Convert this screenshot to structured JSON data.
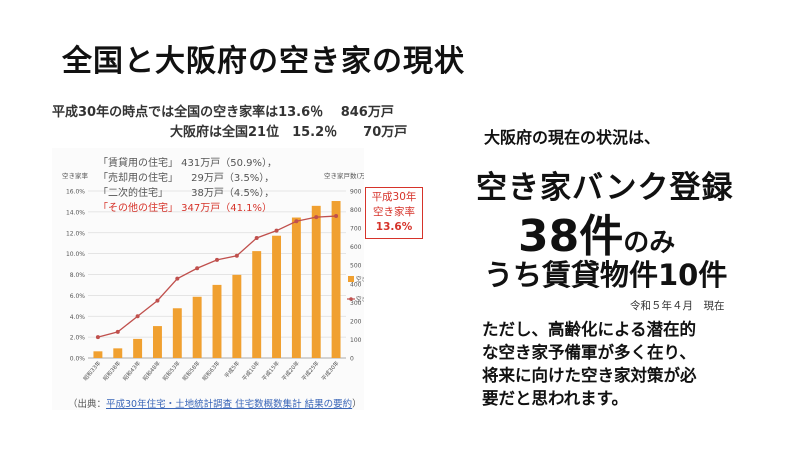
{
  "title": "全国と大阪府の空き家の現状",
  "summary": {
    "line1": "平成30年の時点では全国の空き家率は13.6％　 846万戸",
    "line2": "大阪府は全国21位　15.2％　　70万戸"
  },
  "breakdown": [
    {
      "text": "「賃貸用の住宅」 431万戸（50.9%），",
      "highlight": false
    },
    {
      "text": "「売却用の住宅」 　29万戸（3.5%），",
      "highlight": false
    },
    {
      "text": "「二次的住宅」 　　38万戸（4.5%），",
      "highlight": false
    },
    {
      "text": "「その他の住宅」 347万戸（41.1%）",
      "highlight": true
    }
  ],
  "rate_box": {
    "line1": "平成30年",
    "line2": "空き家率",
    "line3": "13.6%"
  },
  "source": {
    "prefix": "（出典：",
    "link": "平成30年住宅・土地統計調査 住宅数概数集計 結果の要約",
    "suffix": "）"
  },
  "right": {
    "heading": "大阪府の現在の状況は、",
    "line1": "空き家バンク登録",
    "line2_num": "38件",
    "line2_suffix": "のみ",
    "line3": "うち賃貸物件10件",
    "date": "令和５年４月　現在",
    "note_lines": [
      "ただし、高齢化による潜在的",
      "な空き家予備軍が多く在り、",
      "将来に向けた空き家対策が必",
      "要だと思われます。"
    ]
  },
  "colors": {
    "bar": "#f0a030",
    "line": "#c0504d",
    "accent": "#d6332a"
  },
  "chart_data": {
    "type": "bar",
    "categories": [
      "昭和33年",
      "昭和38年",
      "昭和43年",
      "昭和48年",
      "昭和53年",
      "昭和58年",
      "昭和63年",
      "平成5年",
      "平成10年",
      "平成15年",
      "平成20年",
      "平成25年",
      "平成30年"
    ],
    "series": [
      {
        "name": "空き家戸数（万戸）",
        "type": "bar",
        "axis": "right",
        "values": [
          36,
          52,
          103,
          172,
          268,
          330,
          394,
          448,
          576,
          659,
          757,
          820,
          846
        ]
      },
      {
        "name": "空き家率",
        "type": "line",
        "axis": "left",
        "values": [
          2.0,
          2.5,
          4.0,
          5.5,
          7.6,
          8.6,
          9.4,
          9.8,
          11.5,
          12.2,
          13.1,
          13.5,
          13.6
        ]
      }
    ],
    "ylabel_left": "空き家率",
    "ylabel_right": "空き家戸数(万戸)",
    "ylim_left": [
      0,
      16
    ],
    "ylim_right": [
      0,
      900
    ],
    "yticks_left": [
      "0.0%",
      "2.0%",
      "4.0%",
      "6.0%",
      "8.0%",
      "10.0%",
      "12.0%",
      "14.0%",
      "16.0%"
    ],
    "yticks_right": [
      "0",
      "100",
      "200",
      "300",
      "400",
      "500",
      "600",
      "700",
      "800",
      "900"
    ],
    "legend": [
      "空き家戸数（万戸）",
      "空き家率"
    ],
    "legend_position": "right",
    "grid": true
  }
}
